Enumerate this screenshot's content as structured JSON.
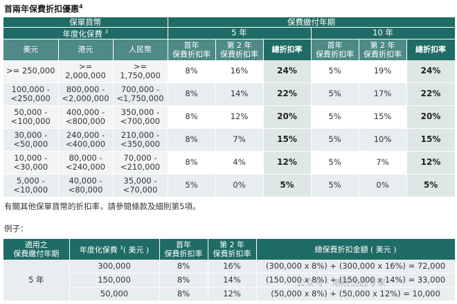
{
  "title": "首兩年保費折扣優惠",
  "title_sup": "4",
  "table1": {
    "header_currency": "保單貨幣",
    "header_period": "保費繳付年期",
    "header_annual_premium": "年度化保費",
    "header_annual_premium_sup": "3",
    "header_5y": "5 年",
    "header_10y": "10 年",
    "col_usd": "美元",
    "col_hkd": "港元",
    "col_rmb": "人民幣",
    "col_first_year": [
      "首年",
      "保費折扣率"
    ],
    "col_second_year": [
      "第 2 年",
      "保費折扣率"
    ],
    "col_total": "總折扣率",
    "rows": [
      {
        "usd": [
          ">= 250,000"
        ],
        "hkd": [
          ">= 2,000,000"
        ],
        "rmb": [
          ">= 1,750,000"
        ],
        "y5_first": "8%",
        "y5_second": "16%",
        "y5_total": "24%",
        "y10_first": "5%",
        "y10_second": "19%",
        "y10_total": "24%"
      },
      {
        "usd": [
          "100,000 -",
          "<250,000"
        ],
        "hkd": [
          "800,000 -",
          "<2,000,000"
        ],
        "rmb": [
          "700,000 -",
          "<1,750,000"
        ],
        "y5_first": "8%",
        "y5_second": "14%",
        "y5_total": "22%",
        "y10_first": "5%",
        "y10_second": "17%",
        "y10_total": "22%"
      },
      {
        "usd": [
          "50,000 -",
          "<100,000"
        ],
        "hkd": [
          "400,000 -",
          "<800,000"
        ],
        "rmb": [
          "350,000 -",
          "<700,000"
        ],
        "y5_first": "8%",
        "y5_second": "12%",
        "y5_total": "20%",
        "y10_first": "5%",
        "y10_second": "15%",
        "y10_total": "20%"
      },
      {
        "usd": [
          "30,000 -",
          "<50,000"
        ],
        "hkd": [
          "240,000 -",
          "<400,000"
        ],
        "rmb": [
          "210,000 -",
          "<350,000"
        ],
        "y5_first": "8%",
        "y5_second": "7%",
        "y5_total": "15%",
        "y10_first": "5%",
        "y10_second": "10%",
        "y10_total": "15%"
      },
      {
        "usd": [
          "10,000 -",
          "<30,000"
        ],
        "hkd": [
          "80,000 -",
          "<240,000"
        ],
        "rmb": [
          "70,000 -",
          "<210,000"
        ],
        "y5_first": "8%",
        "y5_second": "4%",
        "y5_total": "12%",
        "y10_first": "5%",
        "y10_second": "7%",
        "y10_total": "12%"
      },
      {
        "usd": [
          "5,000 -",
          "<10,000"
        ],
        "hkd": [
          "40,000 -",
          "<80,000"
        ],
        "rmb": [
          "35,000 -",
          "<70,000"
        ],
        "y5_first": "5%",
        "y5_second": "0%",
        "y5_total": "5%",
        "y10_first": "5%",
        "y10_second": "0%",
        "y10_total": "5%"
      }
    ]
  },
  "note": "有關其他保單貨幣的折扣率，請參閱條款及細則第5項。",
  "example_label": "例子：",
  "table2": {
    "col_term": [
      "適用之",
      "保費繳付年期"
    ],
    "col_premium_pre": "年度化保費",
    "col_premium_sup": "3",
    "col_premium_post": "( 美元 )",
    "col_first": [
      "首年",
      "保費折扣率"
    ],
    "col_second": [
      "第 2 年",
      "保費折扣率"
    ],
    "col_total": "總保費折扣金額 ( 美元 )",
    "term": "5 年",
    "rows": [
      {
        "premium": "300,000",
        "first": "8%",
        "second": "16%",
        "formula": "(300,000 x 8%) + (300,000 x 16%) = 72,000"
      },
      {
        "premium": "150,000",
        "first": "8%",
        "second": "14%",
        "formula": "(150,000 x 8%) + (150,000 x 14%) = 33,000"
      },
      {
        "premium": "50,000",
        "first": "8%",
        "second": "12%",
        "formula": "(50,000 x 8%) + (50,000 x 12%) = 10,000"
      }
    ]
  },
  "watermark": "公众号 · 港险优选专家",
  "colors": {
    "header_dark": "#1f6b65",
    "header_light": "#4e8a86",
    "row_alt": "#e8edf0"
  }
}
